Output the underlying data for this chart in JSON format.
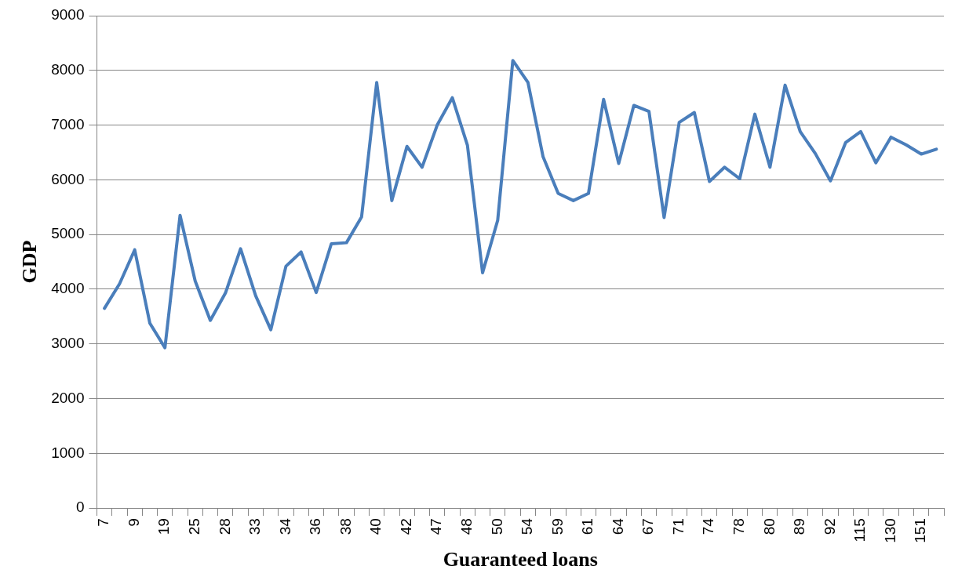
{
  "chart_data": {
    "type": "line",
    "xlabel": "Guaranteed loans",
    "ylabel": "GDP",
    "categories": [
      "7",
      null,
      "9",
      null,
      "19",
      null,
      "25",
      null,
      "28",
      null,
      "33",
      null,
      "34",
      null,
      "36",
      null,
      "38",
      null,
      "40",
      null,
      "42",
      null,
      "47",
      null,
      "48",
      null,
      "50",
      null,
      "54",
      null,
      "59",
      null,
      "61",
      null,
      "64",
      null,
      "67",
      null,
      "71",
      null,
      "74",
      null,
      "78",
      null,
      "80",
      null,
      "89",
      null,
      "92",
      null,
      "115",
      null,
      "130",
      null,
      "151",
      null
    ],
    "series": [
      {
        "color": "#4a7ebb",
        "values": [
          3650,
          4100,
          4720,
          3380,
          2930,
          5350,
          4150,
          3430,
          3930,
          4740,
          3880,
          3260,
          4420,
          4680,
          3940,
          4830,
          4850,
          5320,
          7780,
          5620,
          6610,
          6230,
          7000,
          7500,
          6630,
          4300,
          5260,
          8180,
          7780,
          6420,
          5750,
          5620,
          5750,
          7470,
          6300,
          7360,
          7250,
          5310,
          7050,
          7230,
          5970,
          6230,
          6020,
          7200,
          6230,
          7730,
          6880,
          6480,
          5980,
          6680,
          6880,
          6310,
          6780,
          6640,
          6470,
          6560
        ]
      }
    ],
    "ylim": [
      0,
      9000
    ],
    "yticks": [
      0,
      1000,
      2000,
      3000,
      4000,
      5000,
      6000,
      7000,
      8000,
      9000
    ],
    "grid": "y",
    "legend": false,
    "marker": "none",
    "line_style": "solid"
  }
}
